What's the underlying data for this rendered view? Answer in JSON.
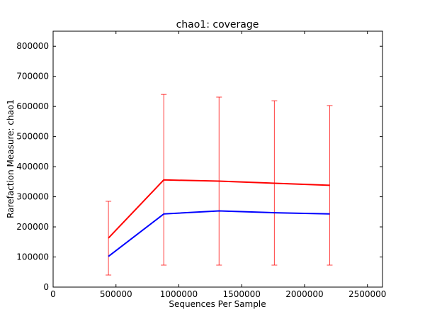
{
  "chart_data": {
    "type": "line",
    "title": "chao1: coverage",
    "xlabel": "Sequences Per Sample",
    "ylabel": "Rarefaction Measure: chao1",
    "xlim": [
      0,
      2620000
    ],
    "ylim": [
      0,
      850000
    ],
    "x_ticks": [
      0,
      500000,
      1000000,
      1500000,
      2000000,
      2500000
    ],
    "x_tick_labels": [
      "0",
      "500000",
      "1000000",
      "1500000",
      "2000000",
      "2500000"
    ],
    "y_ticks": [
      0,
      100000,
      200000,
      300000,
      400000,
      500000,
      600000,
      700000,
      800000
    ],
    "y_tick_labels": [
      "0",
      "100000",
      "200000",
      "300000",
      "400000",
      "500000",
      "600000",
      "700000",
      "800000"
    ],
    "grid": false,
    "x": [
      440000,
      880000,
      1320000,
      1760000,
      2200000
    ],
    "series": [
      {
        "color": "#ff0000",
        "values": [
          163000,
          356000,
          352000,
          345000,
          338000
        ],
        "error_low": [
          40000,
          73000,
          73000,
          73000,
          73000
        ],
        "error_high": [
          285000,
          640000,
          631000,
          619000,
          603000
        ]
      },
      {
        "color": "#0000ff",
        "values": [
          102000,
          243000,
          253000,
          247000,
          243000
        ]
      }
    ]
  }
}
